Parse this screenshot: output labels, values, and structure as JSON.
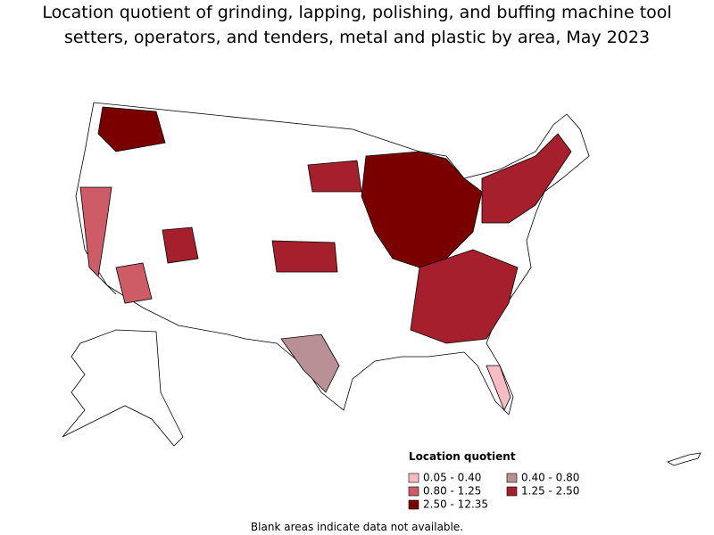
{
  "title_lines": [
    "Location quotient of grinding, lapping, polishing, and buffing machine tool",
    "setters, operators, and tenders, metal and plastic by area, May 2023"
  ],
  "legend": {
    "title": "Location quotient",
    "items": [
      {
        "label": "0.05 - 0.40",
        "color": "#f7bcc4"
      },
      {
        "label": "0.40 - 0.80",
        "color": "#b89096"
      },
      {
        "label": "0.80 - 1.25",
        "color": "#cd5c66"
      },
      {
        "label": "1.25 - 2.50",
        "color": "#a61f2c"
      },
      {
        "label": "2.50 - 12.35",
        "color": "#7a0000"
      }
    ]
  },
  "footnote": "Blank areas indicate data not available."
}
